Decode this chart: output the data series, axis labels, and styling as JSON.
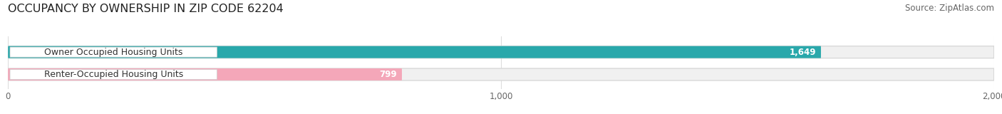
{
  "title": "OCCUPANCY BY OWNERSHIP IN ZIP CODE 62204",
  "source": "Source: ZipAtlas.com",
  "categories": [
    "Owner Occupied Housing Units",
    "Renter-Occupied Housing Units"
  ],
  "values": [
    1649,
    799
  ],
  "bar_colors": [
    "#29A8AB",
    "#F4A7B9"
  ],
  "xlim": [
    0,
    2000
  ],
  "xticks": [
    0,
    1000,
    2000
  ],
  "xtick_labels": [
    "0",
    "1,000",
    "2,000"
  ],
  "background_color": "#ffffff",
  "bar_bg_color": "#f0f0f0",
  "bar_border_color": "#d8d8d8",
  "title_fontsize": 11.5,
  "source_fontsize": 8.5,
  "label_fontsize": 9,
  "value_fontsize": 8.5,
  "tick_fontsize": 8.5,
  "bar_height": 0.52,
  "fig_width": 14.06,
  "fig_height": 1.6
}
